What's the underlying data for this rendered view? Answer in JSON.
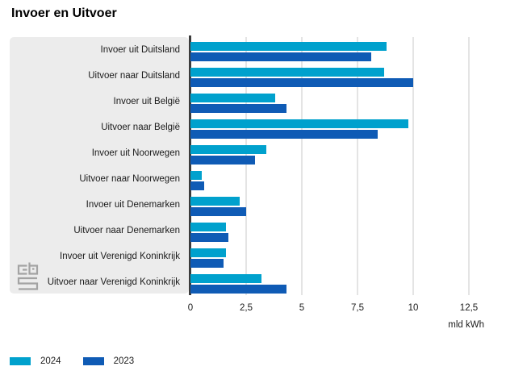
{
  "title": "Invoer en Uitvoer",
  "chart_data": {
    "type": "bar",
    "orientation": "horizontal",
    "title": "Invoer en Uitvoer",
    "categories": [
      "Invoer uit Duitsland",
      "Uitvoer naar Duitsland",
      "Invoer uit België",
      "Uitvoer naar België",
      "Invoer uit Noorwegen",
      "Uitvoer naar Noorwegen",
      "Invoer uit Denemarken",
      "Uitvoer naar Denemarken",
      "Invoer uit Verenigd Koninkrijk",
      "Uitvoer naar Verenigd Koninkrijk"
    ],
    "series": [
      {
        "name": "2024",
        "color": "#00a1cd",
        "values": [
          8.8,
          8.7,
          3.8,
          9.8,
          3.4,
          0.5,
          2.2,
          1.6,
          1.6,
          3.2
        ]
      },
      {
        "name": "2023",
        "color": "#0f5bb5",
        "values": [
          8.1,
          10.0,
          4.3,
          8.4,
          2.9,
          0.6,
          2.5,
          1.7,
          1.5,
          4.3
        ]
      }
    ],
    "xlabel": "mld kWh",
    "xlim": [
      0,
      12.5
    ],
    "xticks": {
      "values": [
        0,
        2.5,
        5,
        7.5,
        10,
        12.5
      ],
      "labels": [
        "0",
        "2,5",
        "5",
        "7,5",
        "10",
        "12,5"
      ]
    },
    "grid": true,
    "legend_position": "bottom-left",
    "colors": {
      "axis": "#3c3c3c",
      "grid": "#e4e4e4",
      "label_panel": "#ececec",
      "logo": "#a3a3a3"
    }
  },
  "logo": {
    "name": "cbs-logo"
  }
}
